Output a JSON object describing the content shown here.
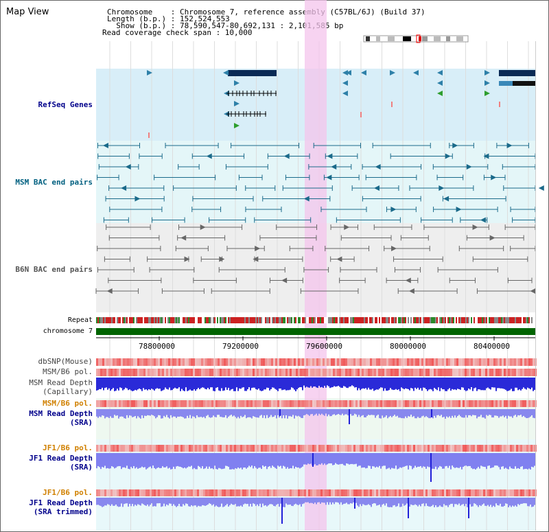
{
  "view": {
    "title": "Map View",
    "chromosome_line": "Chromosome    : Chromosome 7, reference assembly (C57BL/6J) (Build 37)",
    "length_line": "Length (b.p.) : 152,524,553",
    "show_line": "  Show (b.p.) : 78,590,547-80,692,131 : 2,101,585 bp",
    "coverage_line": "Read coverage check span : 10,000"
  },
  "tracks": {
    "refseq": "RefSeq Genes",
    "msm_bac": "MSM BAC end pairs",
    "b6n_bac": "B6N BAC end pairs",
    "repeat": "Repeat",
    "chromosome": "chromosome 7",
    "dbsnp": "dbSNP(Mouse)",
    "msm_b6_pol_1": "MSM/B6 pol.",
    "msm_read_depth_cap_1": "MSM Read Depth",
    "msm_read_depth_cap_2": "(Capillary)",
    "msm_b6_pol_2": "MSM/B6 pol.",
    "msm_read_depth_sra_1": "MSM Read Depth",
    "msm_read_depth_sra_2": "(SRA)",
    "jf1_b6_pol_1": "JF1/B6 pol.",
    "jf1_read_depth_sra_1": "JF1 Read Depth",
    "jf1_read_depth_sra_2": "(SRA)",
    "jf1_b6_pol_2": "JF1/B6 pol.",
    "jf1_read_depth_trim_1": "JF1 Read Depth",
    "jf1_read_depth_trim_2": "(SRA trimmed)"
  },
  "axis": {
    "ticks": [
      "78800000",
      "79200000",
      "79600000",
      "80000000",
      "80400000"
    ]
  },
  "colors": {
    "navy_label": "#00008b",
    "teal_label": "#006080",
    "gray_label": "#555555",
    "orange_label": "#d08000",
    "refseq_bg": "#d8eef8",
    "msm_bac_bg": "#e4f6f8",
    "b6n_bac_bg": "#eeeeee",
    "highlight": "#f4c4ec",
    "chromosome_green": "#006400",
    "depth_blue": "#2020d8",
    "depth_light_blue": "#8080f0",
    "pol_red": "#f06060"
  }
}
